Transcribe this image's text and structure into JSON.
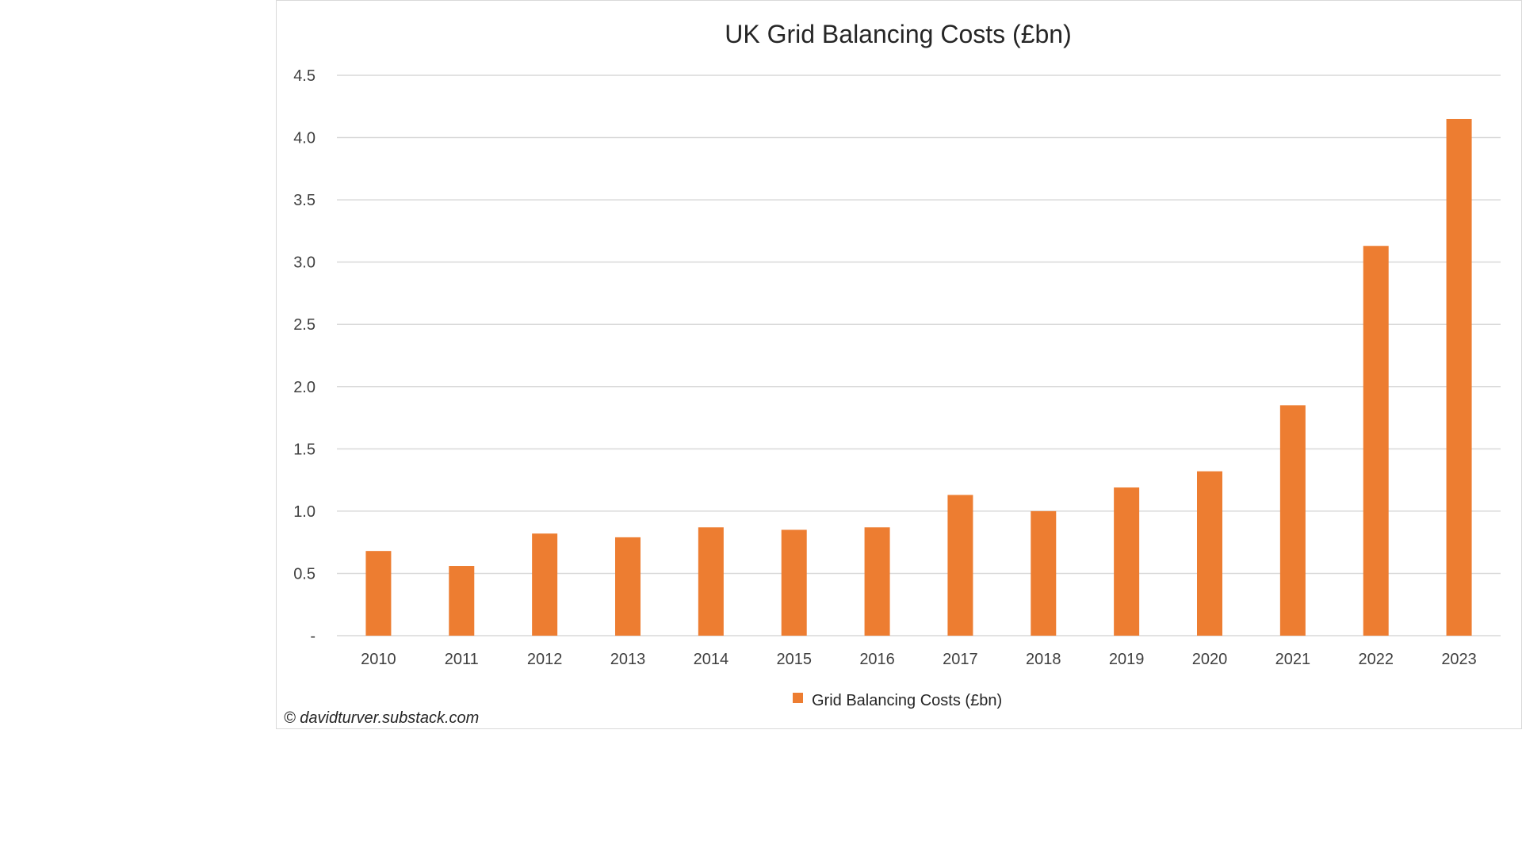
{
  "chart_data": {
    "type": "bar",
    "title": "UK Grid Balancing Costs (£bn)",
    "xlabel": "",
    "ylabel": "",
    "categories": [
      "2010",
      "2011",
      "2012",
      "2013",
      "2014",
      "2015",
      "2016",
      "2017",
      "2018",
      "2019",
      "2020",
      "2021",
      "2022",
      "2023"
    ],
    "series": [
      {
        "name": "Grid Balancing Costs (£bn)",
        "color": "#ED7D31",
        "values": [
          0.68,
          0.56,
          0.82,
          0.79,
          0.87,
          0.85,
          0.87,
          1.13,
          1.0,
          1.19,
          1.32,
          1.85,
          3.13,
          4.15
        ]
      }
    ],
    "ylim": [
      0,
      4.5
    ],
    "yticks": [
      "-",
      "0.5",
      "1.0",
      "1.5",
      "2.0",
      "2.5",
      "3.0",
      "3.5",
      "4.0",
      "4.5"
    ],
    "grid": true,
    "legend_position": "bottom"
  },
  "credit": "© davidturver.substack.com"
}
